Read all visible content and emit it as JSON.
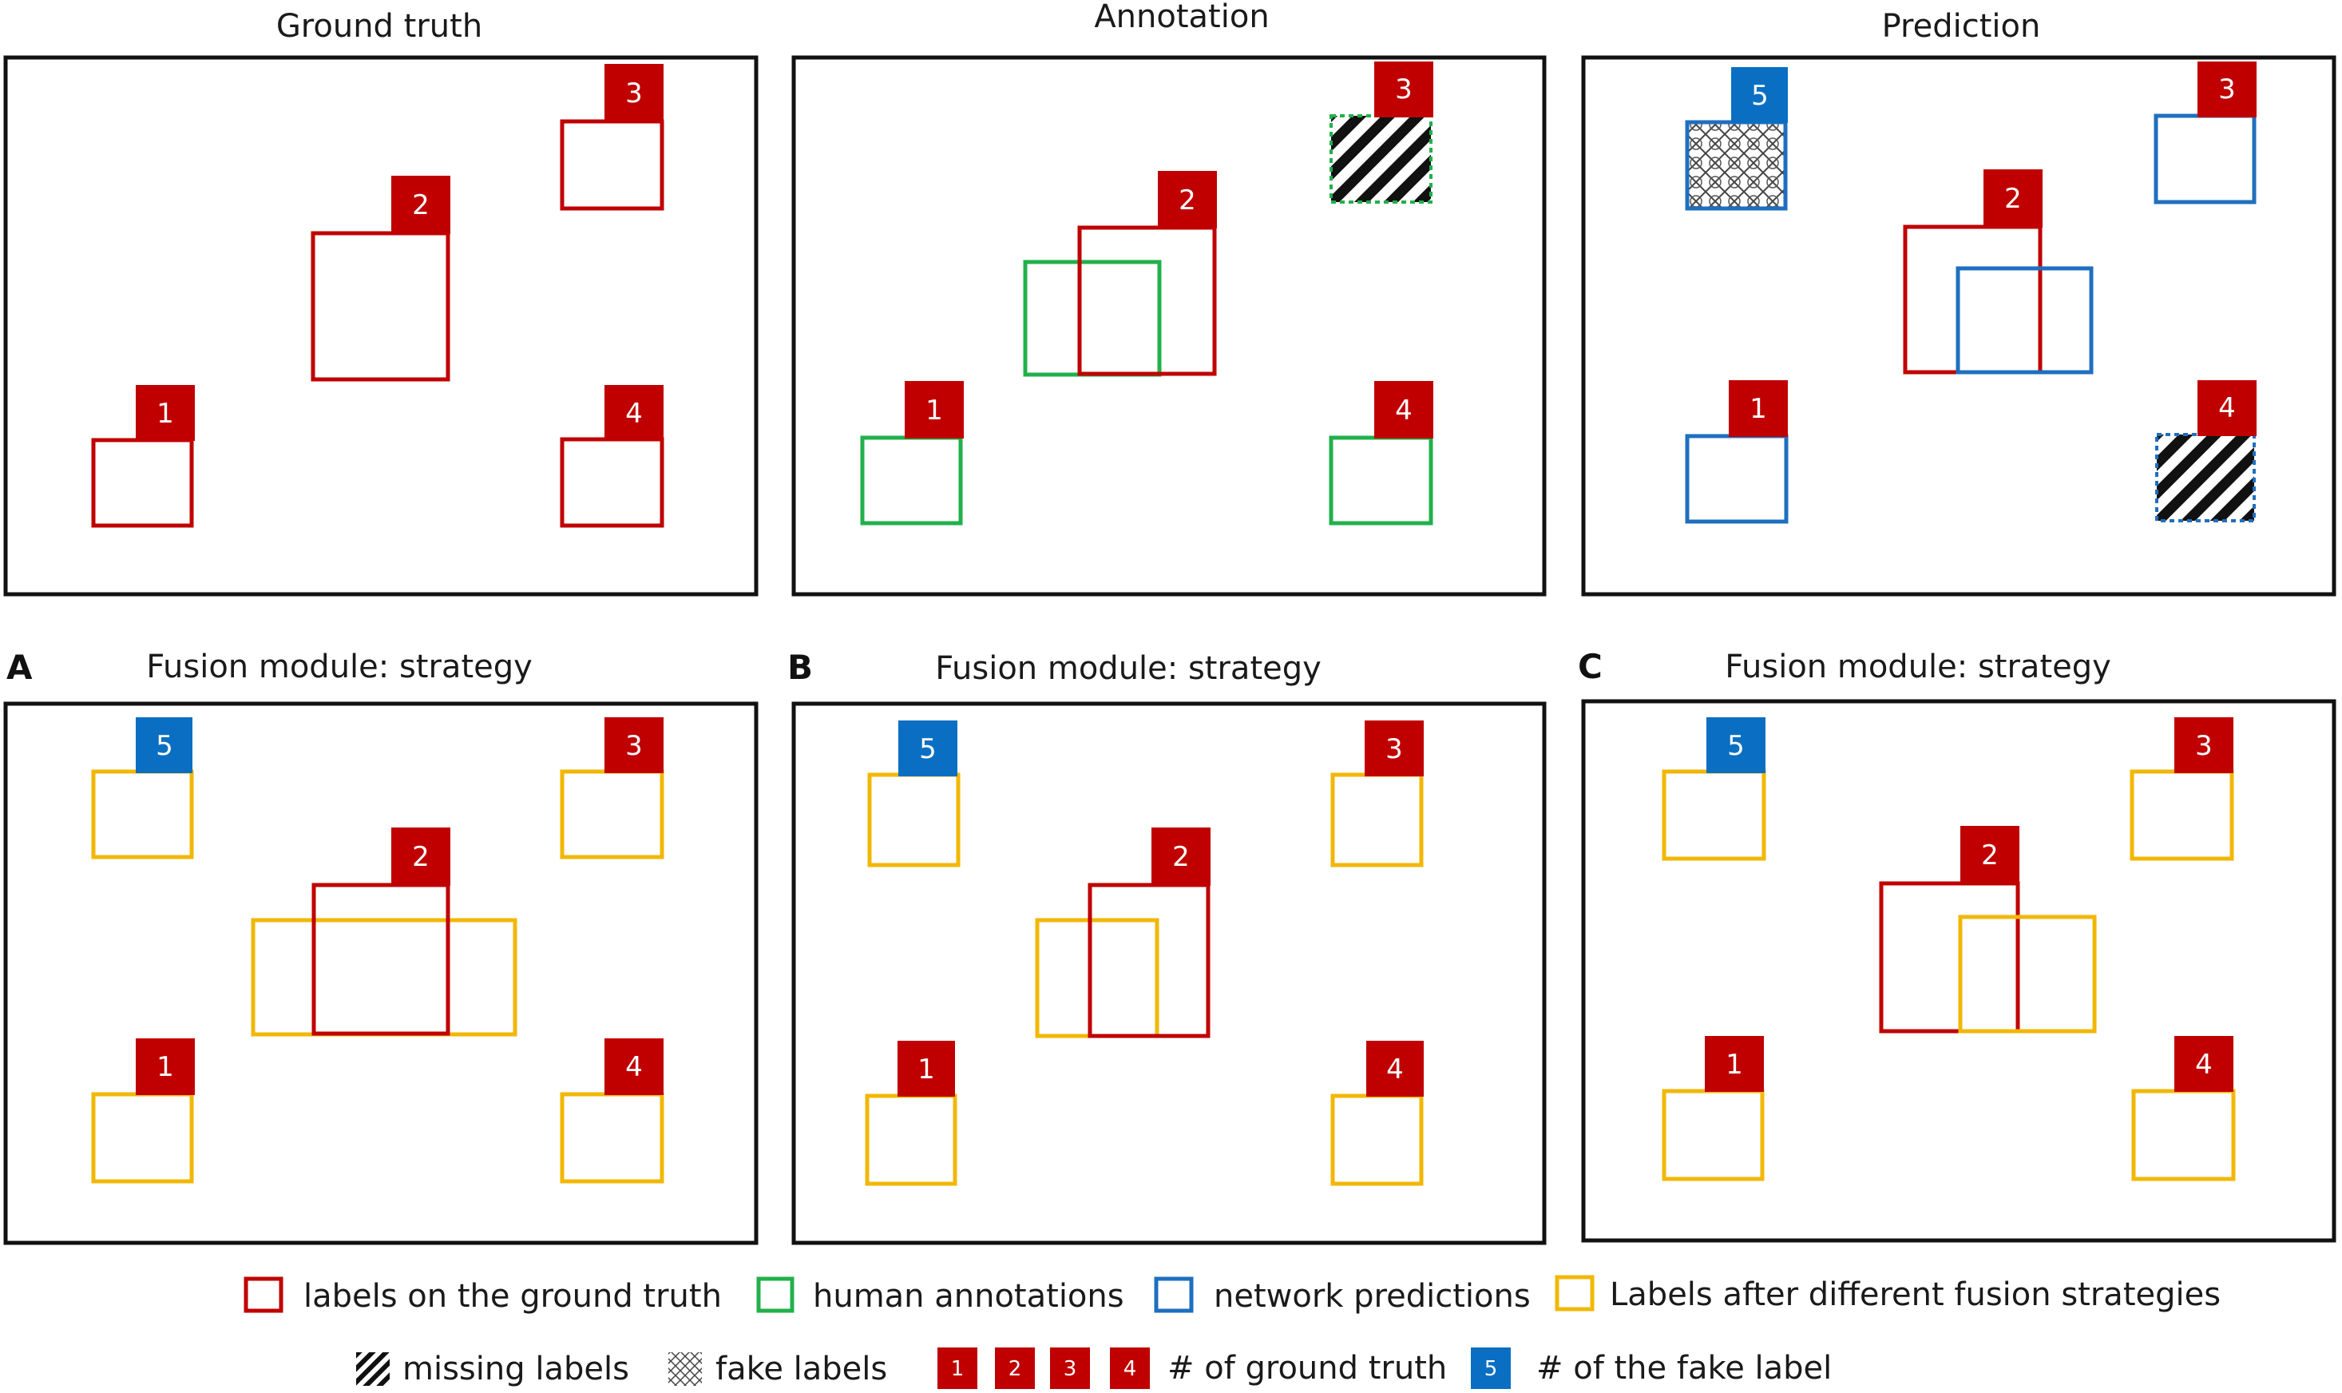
{
  "colors": {
    "ground_truth": "#c00000",
    "annotation": "#22b04b",
    "prediction": "#1f6fbf",
    "fusion": "#f2b705",
    "fake_badge": "#0a6fc2",
    "frame": "#111111"
  },
  "panels": {
    "ground_truth": {
      "title": "Ground truth"
    },
    "annotation": {
      "title": "Annotation"
    },
    "prediction": {
      "title": "Prediction"
    },
    "fusion_a": {
      "letter": "A",
      "title": "Fusion module: strategy"
    },
    "fusion_b": {
      "letter": "B",
      "title": "Fusion module: strategy"
    },
    "fusion_c": {
      "letter": "C",
      "title": "Fusion module: strategy"
    }
  },
  "badges": {
    "n1": "1",
    "n2": "2",
    "n3": "3",
    "n4": "4",
    "n5": "5"
  },
  "legend": {
    "ground_truth_label": "labels on the ground truth",
    "human_annotations_label": "human annotations",
    "network_predictions_label": "network predictions",
    "fusion_label": "Labels after different fusion strategies",
    "missing_label": "missing labels",
    "fake_label": "fake labels",
    "gt_numbers": [
      "1",
      "2",
      "3",
      "4"
    ],
    "gt_numbers_label": "# of ground truth",
    "fake_number": "5",
    "fake_number_label": "# of the fake label"
  }
}
